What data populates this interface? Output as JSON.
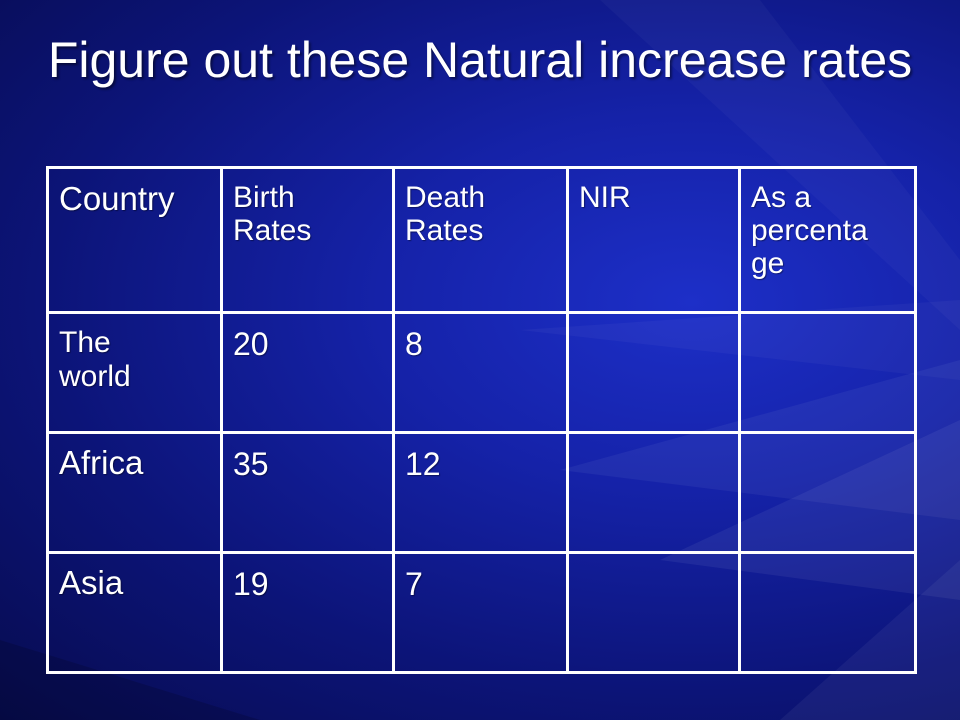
{
  "slide": {
    "title": "Figure out these Natural increase rates"
  },
  "table": {
    "headers": [
      "Country",
      "Birth Rates",
      "Death Rates",
      "NIR",
      "As a percentage"
    ],
    "header_lines": {
      "country": "Country",
      "birth_1": "Birth",
      "birth_2": "Rates",
      "death_1": "Death",
      "death_2": "Rates",
      "nir": "NIR",
      "pct_1": "As a",
      "pct_2": "percenta",
      "pct_3": "ge"
    },
    "rows": [
      {
        "country": "The world",
        "country_1": "The",
        "country_2": "world",
        "birth": "20",
        "death": "8",
        "nir": "",
        "percentage": ""
      },
      {
        "country": "Africa",
        "birth": "35",
        "death": "12",
        "nir": "",
        "percentage": ""
      },
      {
        "country": "Asia",
        "birth": "19",
        "death": "7",
        "nir": "",
        "percentage": ""
      }
    ]
  },
  "colors": {
    "background": "#1522a8",
    "text": "#ffffff",
    "grid": "#ffffff"
  }
}
